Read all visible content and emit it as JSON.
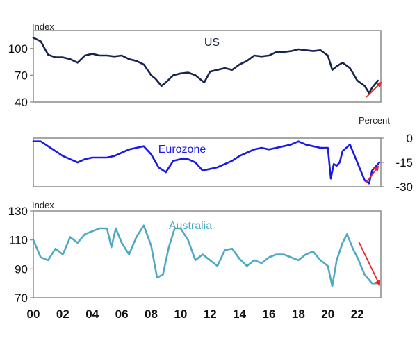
{
  "chart_data": {
    "type": "line",
    "x_range": [
      2000,
      2023.6
    ],
    "x_tick_labels": [
      "00",
      "02",
      "04",
      "06",
      "08",
      "10",
      "12",
      "14",
      "16",
      "18",
      "20",
      "22"
    ],
    "x_tick_values": [
      2000,
      2002,
      2004,
      2006,
      2008,
      2010,
      2012,
      2014,
      2016,
      2018,
      2020,
      2022
    ],
    "panels": [
      {
        "name": "US",
        "unit_label": "Index",
        "y_axis_side": "left",
        "ylim": [
          40,
          120
        ],
        "y_ticks": [
          40,
          70,
          100
        ],
        "y_tick_labels": [
          "40",
          "70",
          "100"
        ],
        "color": "#17244f",
        "arrow_color": "#ee2222",
        "arrow_direction": "up",
        "series": [
          {
            "name": "US",
            "x": [
              2000,
              2000.5,
              2001,
              2001.5,
              2002,
              2002.5,
              2003,
              2003.5,
              2004,
              2004.5,
              2005,
              2005.5,
              2006,
              2006.5,
              2007,
              2007.5,
              2008,
              2008.3,
              2008.7,
              2009,
              2009.5,
              2010,
              2010.5,
              2011,
              2011.6,
              2012,
              2012.5,
              2013,
              2013.5,
              2014,
              2014.5,
              2015,
              2015.5,
              2016,
              2016.5,
              2017,
              2017.5,
              2018,
              2018.5,
              2019,
              2019.5,
              2020,
              2020.3,
              2020.6,
              2021,
              2021.5,
              2022,
              2022.5,
              2022.8,
              2023,
              2023.4
            ],
            "values": [
              112,
              108,
              93,
              90,
              90,
              88,
              84,
              92,
              94,
              92,
              92,
              91,
              92,
              88,
              86,
              82,
              70,
              66,
              58,
              62,
              70,
              72,
              73,
              70,
              62,
              74,
              76,
              78,
              76,
              82,
              86,
              92,
              91,
              92,
              96,
              96,
              97,
              99,
              98,
              97,
              98,
              92,
              76,
              80,
              84,
              78,
              64,
              58,
              50,
              56,
              64
            ]
          }
        ]
      },
      {
        "name": "Eurozone",
        "unit_label": "Percent",
        "y_axis_side": "right",
        "ylim": [
          -30,
          0
        ],
        "y_ticks": [
          0,
          -15,
          -30
        ],
        "y_tick_labels": [
          "0",
          "-15",
          "-30"
        ],
        "color": "#1a1ae6",
        "arrow_color": "#ee2222",
        "arrow_direction": "up",
        "series": [
          {
            "name": "Eurozone",
            "x": [
              2000,
              2000.5,
              2001,
              2001.5,
              2002,
              2002.5,
              2003,
              2003.5,
              2004,
              2004.5,
              2005,
              2005.5,
              2006,
              2006.5,
              2007,
              2007.5,
              2008,
              2008.5,
              2009,
              2009.5,
              2010,
              2010.5,
              2011,
              2011.5,
              2012,
              2012.5,
              2013,
              2013.5,
              2014,
              2014.5,
              2015,
              2015.5,
              2016,
              2016.5,
              2017,
              2017.5,
              2018,
              2018.5,
              2019,
              2019.5,
              2020,
              2020.2,
              2020.4,
              2020.6,
              2020.8,
              2021,
              2021.5,
              2022,
              2022.5,
              2022.8,
              2023,
              2023.5
            ],
            "values": [
              -2,
              -2,
              -5,
              -8,
              -11,
              -13,
              -15,
              -13,
              -12,
              -12,
              -12,
              -11,
              -9,
              -7,
              -6,
              -5,
              -10,
              -18,
              -21,
              -14,
              -13,
              -13,
              -15,
              -20,
              -19,
              -18,
              -16,
              -14,
              -11,
              -9,
              -7,
              -6,
              -7,
              -6,
              -5,
              -4,
              -2,
              -4,
              -5,
              -6,
              -6,
              -25,
              -16,
              -17,
              -15,
              -8,
              -4,
              -15,
              -26,
              -28,
              -20,
              -15
            ]
          }
        ]
      },
      {
        "name": "Australia",
        "unit_label": "Index",
        "y_axis_side": "left",
        "ylim": [
          70,
          130
        ],
        "y_ticks": [
          70,
          90,
          110,
          130
        ],
        "y_tick_labels": [
          "70",
          "90",
          "110",
          "130"
        ],
        "color": "#4fa9c4",
        "arrow_color": "#ee2222",
        "arrow_direction": "down",
        "series": [
          {
            "name": "Australia",
            "x": [
              2000,
              2000.5,
              2001,
              2001.5,
              2002,
              2002.5,
              2003,
              2003.5,
              2004,
              2004.5,
              2005,
              2005.3,
              2005.6,
              2006,
              2006.5,
              2007,
              2007.5,
              2008,
              2008.4,
              2008.8,
              2009.2,
              2009.6,
              2010,
              2010.5,
              2011,
              2011.5,
              2012,
              2012.5,
              2013,
              2013.5,
              2014,
              2014.5,
              2015,
              2015.5,
              2016,
              2016.5,
              2017,
              2017.5,
              2018,
              2018.5,
              2019,
              2019.5,
              2020,
              2020.3,
              2020.6,
              2021,
              2021.3,
              2021.7,
              2022,
              2022.5,
              2023,
              2023.5
            ],
            "values": [
              110,
              98,
              96,
              104,
              100,
              112,
              108,
              114,
              116,
              118,
              118,
              105,
              118,
              108,
              100,
              112,
              120,
              106,
              84,
              86,
              105,
              118,
              118,
              110,
              96,
              100,
              96,
              92,
              103,
              104,
              97,
              92,
              96,
              94,
              98,
              100,
              100,
              98,
              96,
              100,
              102,
              96,
              92,
              78,
              96,
              108,
              114,
              104,
              98,
              86,
              80,
              80
            ]
          }
        ]
      }
    ]
  }
}
